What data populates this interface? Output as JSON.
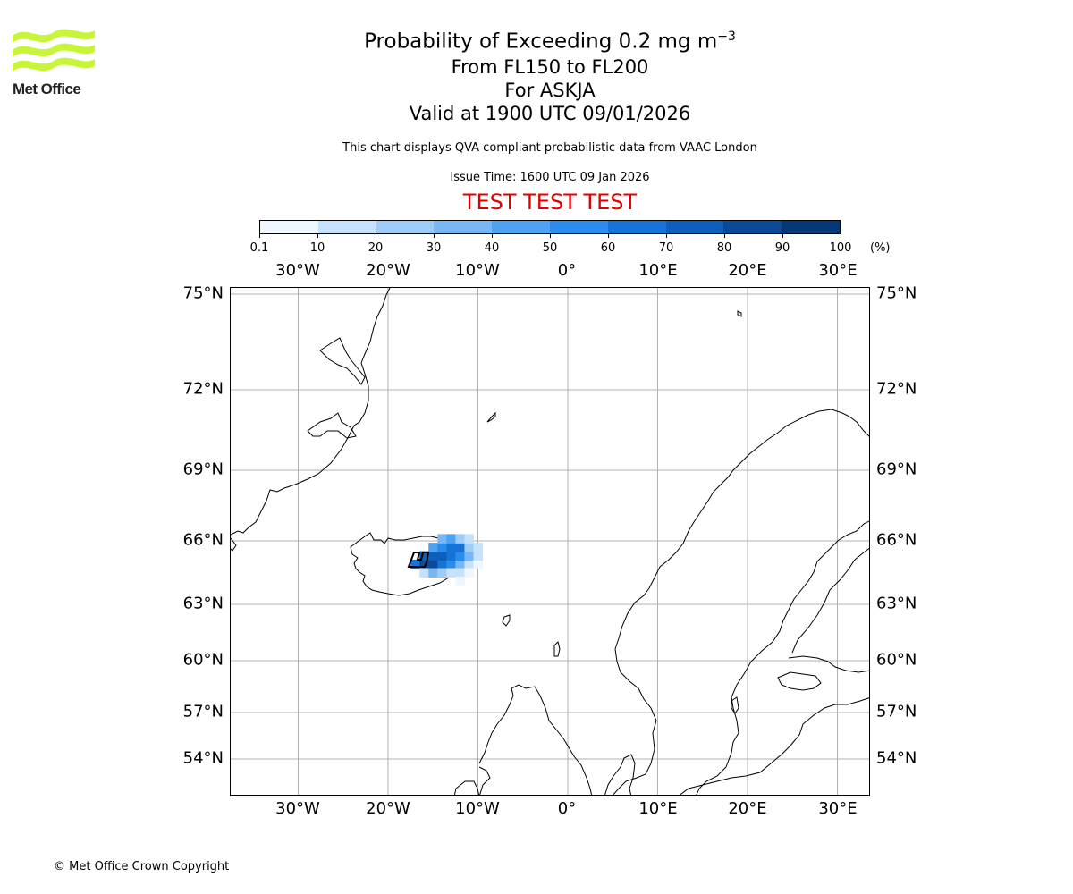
{
  "logo": {
    "text": "Met Office",
    "color": "#c8f53a"
  },
  "title": {
    "line1_main": "Probability of Exceeding 0.2 mg m",
    "line1_sup": "−3",
    "line2": "From FL150 to FL200",
    "line3": "For ASKJA",
    "line4": "Valid at 1900 UTC 09/01/2026"
  },
  "subtitle": "This chart displays QVA compliant probabilistic data from VAAC London",
  "issue_time": "Issue Time: 1600 UTC 09 Jan 2026",
  "test_banner": "TEST TEST TEST",
  "colorbar": {
    "ticks": [
      "0.1",
      "10",
      "20",
      "30",
      "40",
      "50",
      "60",
      "70",
      "80",
      "90",
      "100"
    ],
    "unit": "(%)",
    "colors": [
      "#eef6ff",
      "#c6e1fb",
      "#9fcbf7",
      "#78b7f5",
      "#4ea2f2",
      "#2a8ded",
      "#1674d8",
      "#0d5fbc",
      "#0a4a98",
      "#073776",
      "#042650"
    ]
  },
  "axes": {
    "lon_labels": [
      "30°W",
      "20°W",
      "10°W",
      "0°",
      "10°E",
      "20°E",
      "30°E"
    ],
    "lat_labels": [
      "75°N",
      "72°N",
      "69°N",
      "66°N",
      "63°N",
      "60°N",
      "57°N",
      "54°N"
    ]
  },
  "plume": {
    "description_color_scale": "probability",
    "cells": [
      {
        "lon": -17,
        "lat": 64.9,
        "p": 60
      },
      {
        "lon": -16,
        "lat": 64.9,
        "p": 85
      },
      {
        "lon": -15,
        "lat": 64.9,
        "p": 80
      },
      {
        "lon": -14,
        "lat": 64.9,
        "p": 65
      },
      {
        "lon": -13,
        "lat": 64.9,
        "p": 55
      },
      {
        "lon": -12,
        "lat": 64.9,
        "p": 35
      },
      {
        "lon": -11,
        "lat": 64.9,
        "p": 15
      },
      {
        "lon": -10,
        "lat": 64.9,
        "p": 5
      },
      {
        "lon": -16,
        "lat": 65.3,
        "p": 70
      },
      {
        "lon": -15,
        "lat": 65.3,
        "p": 75
      },
      {
        "lon": -14,
        "lat": 65.3,
        "p": 70
      },
      {
        "lon": -13,
        "lat": 65.3,
        "p": 60
      },
      {
        "lon": -12,
        "lat": 65.3,
        "p": 55
      },
      {
        "lon": -11,
        "lat": 65.3,
        "p": 30
      },
      {
        "lon": -10,
        "lat": 65.3,
        "p": 10
      },
      {
        "lon": -15,
        "lat": 65.7,
        "p": 45
      },
      {
        "lon": -14,
        "lat": 65.7,
        "p": 55
      },
      {
        "lon": -13,
        "lat": 65.7,
        "p": 65
      },
      {
        "lon": -12,
        "lat": 65.7,
        "p": 60
      },
      {
        "lon": -11,
        "lat": 65.7,
        "p": 25
      },
      {
        "lon": -10,
        "lat": 65.7,
        "p": 10
      },
      {
        "lon": -14,
        "lat": 66.1,
        "p": 30
      },
      {
        "lon": -13,
        "lat": 66.1,
        "p": 40
      },
      {
        "lon": -12,
        "lat": 66.1,
        "p": 25
      },
      {
        "lon": -11,
        "lat": 66.1,
        "p": 10
      },
      {
        "lon": -16,
        "lat": 64.5,
        "p": 15
      },
      {
        "lon": -15,
        "lat": 64.5,
        "p": 30
      },
      {
        "lon": -14,
        "lat": 64.5,
        "p": 20
      },
      {
        "lon": -13,
        "lat": 64.5,
        "p": 15
      },
      {
        "lon": -12,
        "lat": 64.5,
        "p": 10
      },
      {
        "lon": -11,
        "lat": 64.5,
        "p": 5
      },
      {
        "lon": -12,
        "lat": 64.1,
        "p": 5
      }
    ]
  },
  "copyright": "© Met Office Crown Copyright"
}
